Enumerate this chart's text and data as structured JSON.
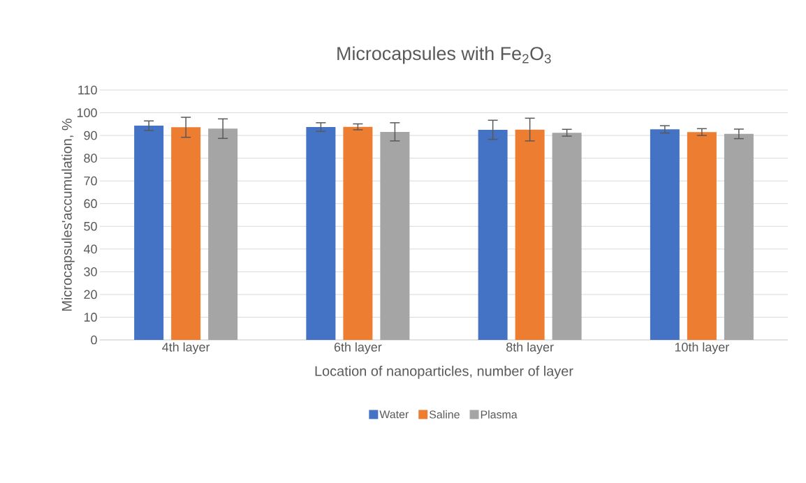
{
  "chart_data": {
    "type": "bar",
    "title": "Microcapsules with Fe$_{2}$O$_{3}$",
    "xlabel": "Location of nanoparticles, number of layer",
    "ylabel": "Microcapsules'accumulation, %",
    "categories": [
      "4th layer",
      "6th layer",
      "8th layer",
      "10th layer"
    ],
    "series": [
      {
        "name": "Water",
        "color": "#4472c4",
        "values": [
          94.3,
          93.7,
          92.5,
          92.7
        ],
        "errors": [
          2.1,
          1.9,
          4.2,
          1.6
        ]
      },
      {
        "name": "Saline",
        "color": "#ed7d31",
        "values": [
          93.6,
          93.8,
          92.6,
          91.5
        ],
        "errors": [
          4.4,
          1.3,
          5.0,
          1.5
        ]
      },
      {
        "name": "Plasma",
        "color": "#a5a5a5",
        "values": [
          93.0,
          91.6,
          91.2,
          90.7
        ],
        "errors": [
          4.3,
          4.0,
          1.5,
          2.1
        ]
      }
    ],
    "ylim": [
      0,
      110
    ],
    "yticks": [
      0,
      10,
      20,
      30,
      40,
      50,
      60,
      70,
      80,
      90,
      100,
      110
    ],
    "grid": "y",
    "legend": "bottom"
  }
}
